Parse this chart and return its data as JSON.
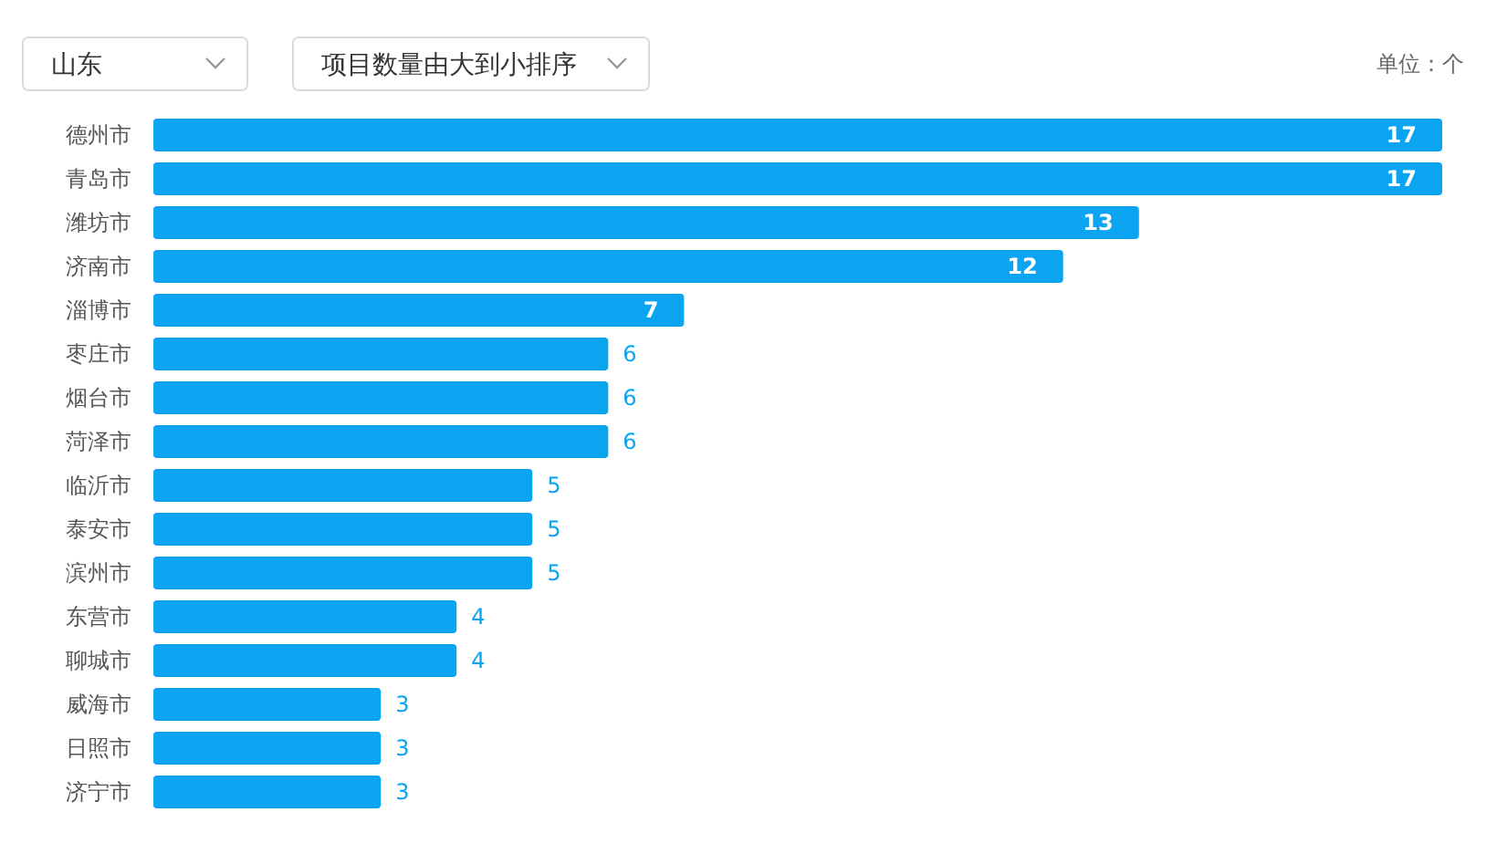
{
  "chart_data": {
    "type": "bar",
    "orientation": "horizontal",
    "categories": [
      "德州市",
      "青岛市",
      "潍坊市",
      "济南市",
      "淄博市",
      "枣庄市",
      "烟台市",
      "菏泽市",
      "临沂市",
      "泰安市",
      "滨州市",
      "东营市",
      "聊城市",
      "威海市",
      "日照市",
      "济宁市"
    ],
    "values": [
      17,
      17,
      13,
      12,
      7,
      6,
      6,
      6,
      5,
      5,
      5,
      4,
      4,
      3,
      3,
      3
    ],
    "color": "#0ba4f1",
    "data_labels": true,
    "annotations": [
      "山东",
      "项目数量由大到小排序",
      "单位：个"
    ]
  }
}
